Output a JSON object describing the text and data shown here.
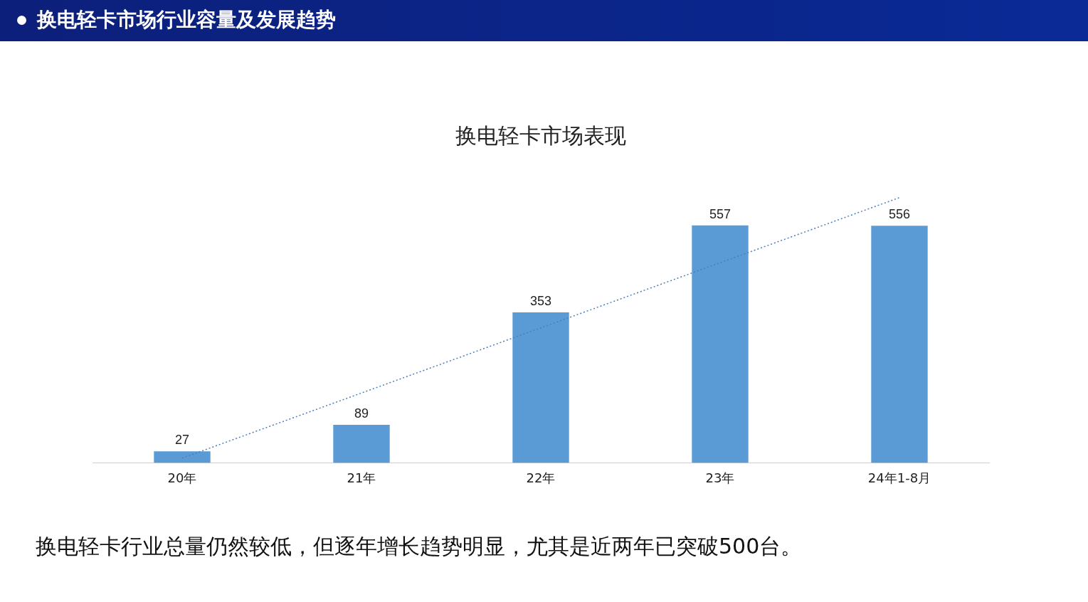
{
  "chart_data": {
    "type": "bar",
    "title": "换电轻卡市场表现",
    "categories": [
      "20年",
      "21年",
      "22年",
      "23年",
      "24年1-8月"
    ],
    "series": [
      {
        "color": "#5b9bd5",
        "values": [
          27,
          89,
          353,
          557,
          556
        ],
        "value_labels": [
          "27",
          "89",
          "353",
          "557",
          "556"
        ]
      },
      {
        "type": "line",
        "color": "#4a7ebb",
        "x": [
          "20年",
          "24年1-8月"
        ],
        "values": [
          11,
          622
        ],
        "line_style": "dotted",
        "marker": "none"
      }
    ],
    "legend": false,
    "grid": false,
    "annotations": [
      "换电轻卡市场行业容量及发展趋势",
      "换电轻卡行业总量仍然较低，但逐年增长趋势明显，尤其是近两年已突破500台。"
    ]
  }
}
